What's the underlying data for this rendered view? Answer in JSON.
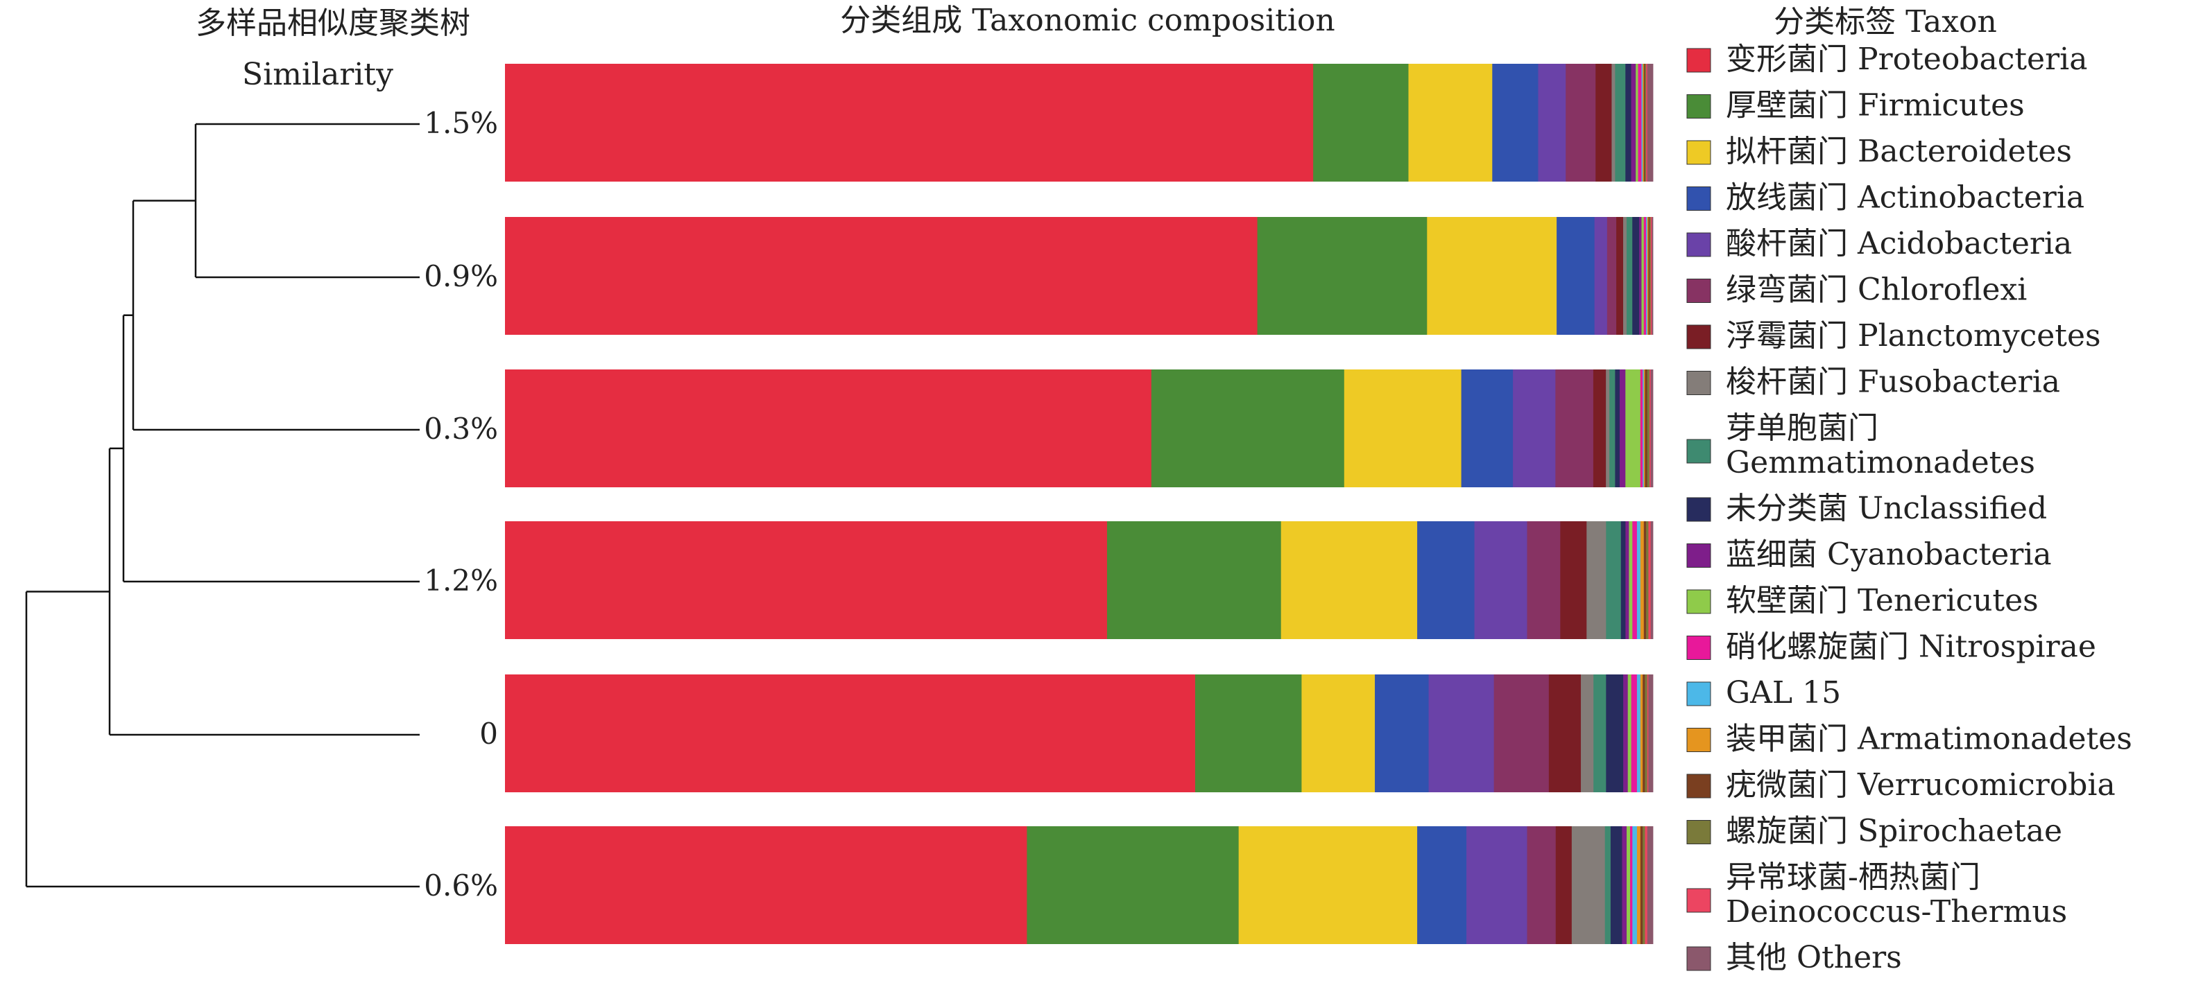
{
  "chart_data": {
    "type": "bar",
    "orientation": "horizontal",
    "stacked": true,
    "normalized": true,
    "title": "分类组成 Taxonomic composition",
    "dendrogram_title": "多样品相似度聚类树",
    "dendrogram_subtitle": "Similarity",
    "legend_title": "分类标签 Taxon",
    "legend_position": "right",
    "samples": [
      "1.5%",
      "0.9%",
      "0.3%",
      "1.2%",
      "0",
      "0.6%"
    ],
    "series": [
      {
        "name": "变形菌门 Proteobacteria",
        "name_lines": [
          "变形菌门 Proteobacteria"
        ],
        "color": "#E52D41",
        "values": [
          70.4,
          65.6,
          56.3,
          52.6,
          60.3,
          45.6
        ]
      },
      {
        "name": "厚壁菌门 Firmicutes",
        "name_lines": [
          "厚壁菌门 Firmicutes"
        ],
        "color": "#4A8C37",
        "values": [
          8.3,
          14.8,
          16.8,
          15.2,
          9.3,
          18.5
        ]
      },
      {
        "name": "拟杆菌门 Bacteroidetes",
        "name_lines": [
          "拟杆菌门 Bacteroidetes"
        ],
        "color": "#EECA25",
        "values": [
          7.3,
          11.3,
          10.2,
          11.9,
          6.4,
          15.6
        ]
      },
      {
        "name": "放线菌门 Actinobacteria",
        "name_lines": [
          "放线菌门 Actinobacteria"
        ],
        "color": "#3152AE",
        "values": [
          4.0,
          3.3,
          4.5,
          5.0,
          4.7,
          4.3
        ]
      },
      {
        "name": "酸杆菌门 Acidobacteria",
        "name_lines": [
          "酸杆菌门 Acidobacteria"
        ],
        "color": "#6A42A8",
        "values": [
          2.4,
          1.1,
          3.7,
          4.6,
          5.7,
          5.3
        ]
      },
      {
        "name": "绿弯菌门 Chloroflexi",
        "name_lines": [
          "绿弯菌门 Chloroflexi"
        ],
        "color": "#873363",
        "values": [
          2.6,
          0.8,
          3.3,
          2.9,
          4.8,
          2.5
        ]
      },
      {
        "name": "浮霉菌门 Planctomycetes",
        "name_lines": [
          "浮霉菌门 Planctomycetes"
        ],
        "color": "#7A1E25",
        "values": [
          1.4,
          0.6,
          1.1,
          2.3,
          2.8,
          1.4
        ]
      },
      {
        "name": "梭杆菌门 Fusobacteria",
        "name_lines": [
          "梭杆菌门 Fusobacteria"
        ],
        "color": "#847D79",
        "values": [
          0.3,
          0.3,
          0.3,
          1.7,
          1.1,
          2.9
        ]
      },
      {
        "name": "芽单胞菌门 Gemmatimonadetes",
        "name_lines": [
          "芽单胞菌门",
          "Gemmatimonadetes"
        ],
        "color": "#3E8A70",
        "values": [
          0.9,
          0.5,
          0.5,
          1.3,
          1.1,
          0.5
        ]
      },
      {
        "name": "未分类菌 Unclassified",
        "name_lines": [
          "未分类菌 Unclassified"
        ],
        "color": "#272C5E",
        "values": [
          0.5,
          0.6,
          0.4,
          0.4,
          1.5,
          1.0
        ]
      },
      {
        "name": "蓝细菌 Cyanobacteria",
        "name_lines": [
          "蓝细菌 Cyanobacteria"
        ],
        "color": "#7E1E8A",
        "values": [
          0.4,
          0.2,
          0.5,
          0.3,
          0.4,
          0.4
        ]
      },
      {
        "name": "软壁菌门 Tenericutes",
        "name_lines": [
          "软壁菌门 Tenericutes"
        ],
        "color": "#8FCB4A",
        "values": [
          0.2,
          0.2,
          1.3,
          0.3,
          0.3,
          0.3
        ]
      },
      {
        "name": "硝化螺旋菌门 Nitrospirae",
        "name_lines": [
          "硝化螺旋菌门 Nitrospirae"
        ],
        "color": "#E8189A",
        "values": [
          0.3,
          0.2,
          0.2,
          0.4,
          0.5,
          0.2
        ]
      },
      {
        "name": "GAL 15",
        "name_lines": [
          "GAL 15"
        ],
        "color": "#4CB8E8",
        "values": [
          0.1,
          0.1,
          0.1,
          0.3,
          0.3,
          0.4
        ]
      },
      {
        "name": "装甲菌门 Armatimonadetes",
        "name_lines": [
          "装甲菌门 Armatimonadetes"
        ],
        "color": "#E5951F",
        "values": [
          0.1,
          0.1,
          0.1,
          0.3,
          0.2,
          0.3
        ]
      },
      {
        "name": "疣微菌门 Verrucomicrobia",
        "name_lines": [
          "疣微菌门 Verrucomicrobia"
        ],
        "color": "#7A3F20",
        "values": [
          0.1,
          0.1,
          0.2,
          0.2,
          0.2,
          0.2
        ]
      },
      {
        "name": "螺旋菌门 Spirochaetae",
        "name_lines": [
          "螺旋菌门 Spirochaetae"
        ],
        "color": "#7A7A3A",
        "values": [
          0.1,
          0.1,
          0.2,
          0.2,
          0.2,
          0.2
        ]
      },
      {
        "name": "异常球菌-栖热菌门 Deinococcus-Thermus",
        "name_lines": [
          "异常球菌-栖热菌门",
          "Deinococcus-Thermus"
        ],
        "color": "#EC4561",
        "values": [
          0.1,
          0.1,
          0.1,
          0.2,
          0.1,
          0.2
        ]
      },
      {
        "name": "其他 Others",
        "name_lines": [
          "其他 Others"
        ],
        "color": "#8B586C",
        "values": [
          0.5,
          0.1,
          0.2,
          0.2,
          0.4,
          0.5
        ]
      }
    ]
  }
}
